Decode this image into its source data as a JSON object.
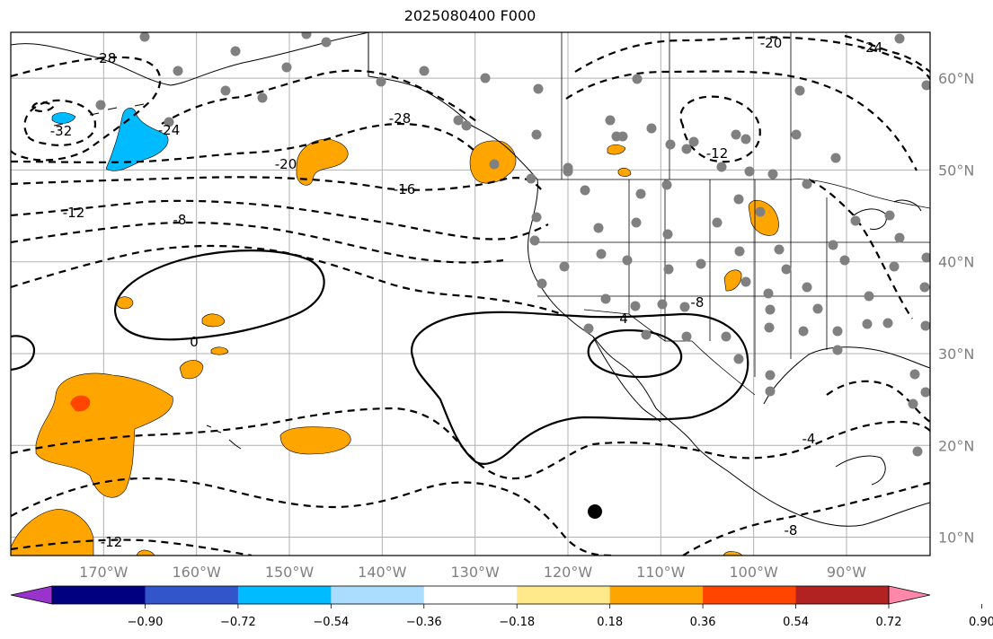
{
  "title": "2025080400 F000",
  "map": {
    "lon_range": [
      -180,
      -81
    ],
    "lat_range": [
      8,
      65
    ],
    "lon_ticks": [
      {
        "value": -170,
        "label": "170°W"
      },
      {
        "value": -160,
        "label": "160°W"
      },
      {
        "value": -150,
        "label": "150°W"
      },
      {
        "value": -140,
        "label": "140°W"
      },
      {
        "value": -130,
        "label": "130°W"
      },
      {
        "value": -120,
        "label": "120°W"
      },
      {
        "value": -110,
        "label": "110°W"
      },
      {
        "value": -100,
        "label": "100°W"
      },
      {
        "value": -90,
        "label": "90°W"
      }
    ],
    "lat_ticks": [
      {
        "value": 60,
        "label": "60°N"
      },
      {
        "value": 50,
        "label": "50°N"
      },
      {
        "value": 40,
        "label": "40°N"
      },
      {
        "value": 30,
        "label": "30°N"
      },
      {
        "value": 20,
        "label": "20°N"
      },
      {
        "value": 10,
        "label": "10°N"
      }
    ],
    "contour_labels": [
      "-32",
      "-28",
      "-24",
      "-20",
      "-16",
      "-12",
      "-8",
      "0",
      "4",
      "-4",
      "-8",
      "-12",
      "-20",
      "-24",
      "-28",
      "-12",
      "-8"
    ],
    "station_color": "#808080",
    "station_count": 96
  },
  "colorbar": {
    "colors": [
      "#9933cc",
      "#000080",
      "#3355cc",
      "#00bbff",
      "#aaddff",
      "#ffffff",
      "#ffe98a",
      "#ffa500",
      "#ff4500",
      "#b22222",
      "#ff88aa"
    ],
    "tick_labels": [
      "−0.90",
      "−0.72",
      "−0.54",
      "−0.36",
      "−0.18",
      "0.18",
      "0.36",
      "0.54",
      "0.72",
      "0.90"
    ]
  }
}
